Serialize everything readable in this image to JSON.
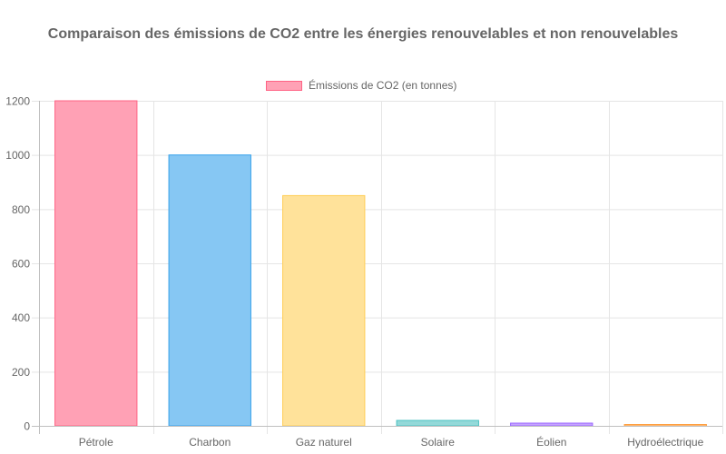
{
  "chart_data": {
    "type": "bar",
    "title": "Comparaison des émissions de CO2 entre les énergies renouvelables et non renouvelables",
    "xlabel": "",
    "ylabel": "",
    "categories": [
      "Pétrole",
      "Charbon",
      "Gaz naturel",
      "Solaire",
      "Éolien",
      "Hydroélectrique"
    ],
    "series": [
      {
        "name": "Émissions de CO2 (en tonnes)",
        "values": [
          1200,
          1000,
          850,
          20,
          10,
          5
        ]
      }
    ],
    "ylim": [
      0,
      1200
    ],
    "yticks": [
      0,
      200,
      400,
      600,
      800,
      1000,
      1200
    ],
    "grid": true,
    "legend": "top",
    "colors": {
      "fills": [
        "#ffa1b5",
        "#86c7f3",
        "#ffe29a",
        "#93d9d9",
        "#c5a3ff",
        "#ffcf9f"
      ],
      "borders": [
        "#ff6384",
        "#36a2eb",
        "#ffce56",
        "#4bc0c0",
        "#9966ff",
        "#ff9f40"
      ],
      "legend_fill": "#ffa1b5",
      "legend_border": "#ff6384",
      "grid": "#e5e5e5",
      "text": "#666666"
    }
  }
}
